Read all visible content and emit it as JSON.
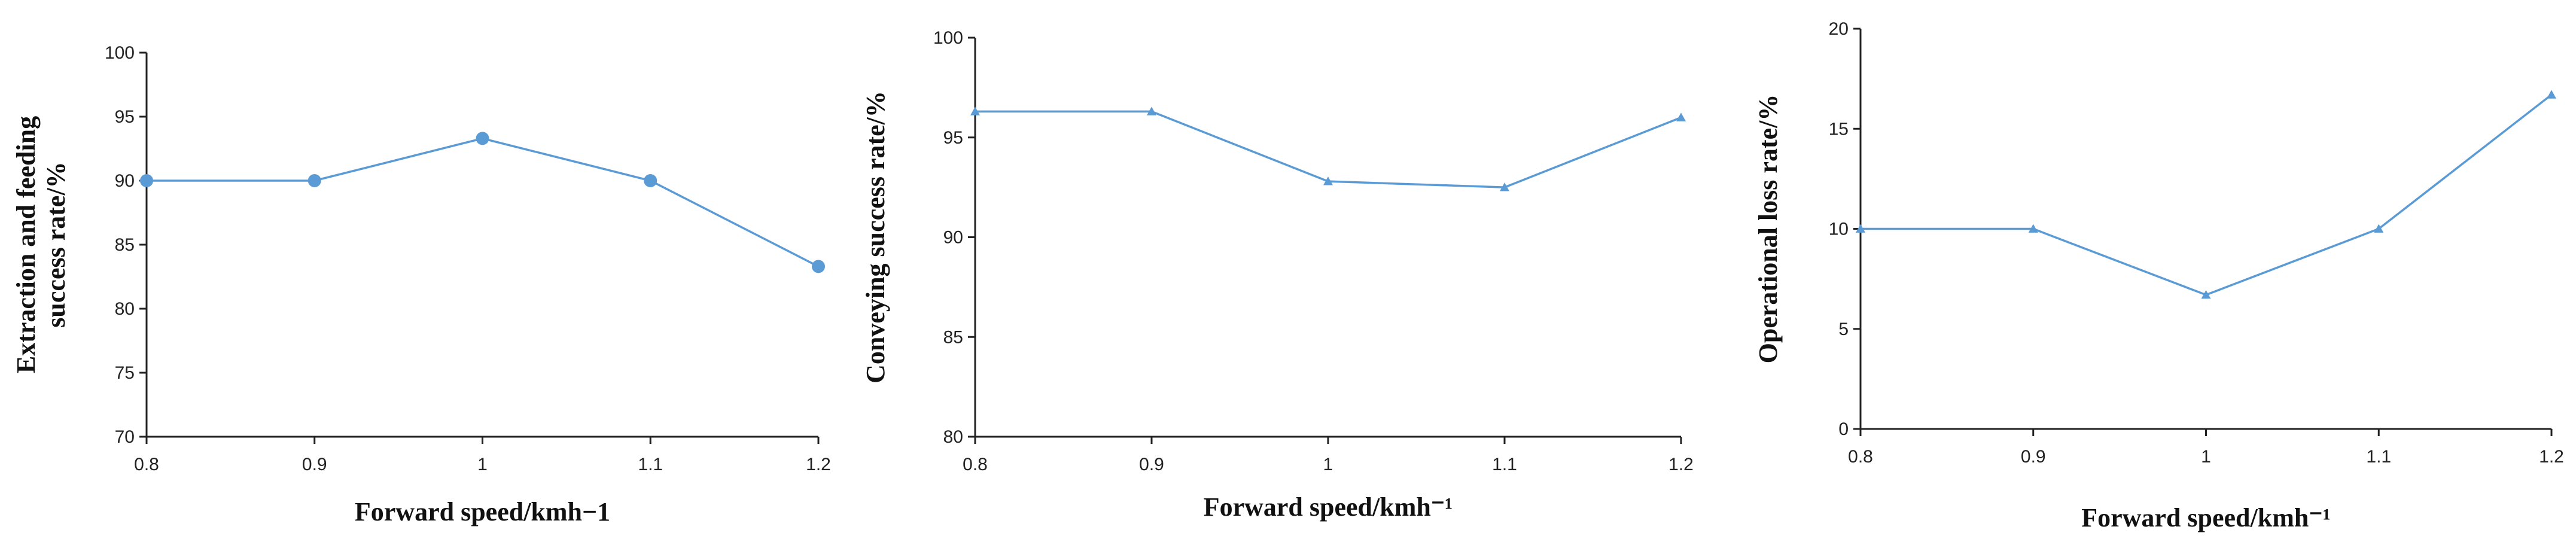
{
  "colors": {
    "series": "#5B9BD5",
    "axis": "#222222"
  },
  "chart_data": [
    {
      "type": "line",
      "x": [
        0.8,
        0.9,
        1,
        1.1,
        1.2
      ],
      "x_tick_labels": [
        "0.8",
        "0.9",
        "1",
        "1.1",
        "1.2"
      ],
      "xlim": [
        0.8,
        1.2
      ],
      "ylim": [
        70,
        100
      ],
      "y_ticks": [
        "70",
        "75",
        "80",
        "85",
        "90",
        "95",
        "100"
      ],
      "xlabel": "Forward speed/kmh−1",
      "ylabel_lines": [
        "Extraction and feeding",
        "success rate/%"
      ],
      "marker": "circle",
      "grid": false,
      "series": [
        {
          "values": [
            90,
            90,
            93.3,
            90,
            83.3
          ]
        }
      ]
    },
    {
      "type": "line",
      "x": [
        0.8,
        0.9,
        1,
        1.1,
        1.2
      ],
      "x_tick_labels": [
        "0.8",
        "0.9",
        "1",
        "1.1",
        "1.2"
      ],
      "xlim": [
        0.8,
        1.2
      ],
      "ylim": [
        80,
        100
      ],
      "y_ticks": [
        "80",
        "85",
        "90",
        "95",
        "100"
      ],
      "xlabel": "Forward speed/kmh⁻¹",
      "ylabel_lines": [
        "Conveying success rate/%"
      ],
      "marker": "triangle",
      "grid": false,
      "series": [
        {
          "values": [
            96.3,
            96.3,
            92.8,
            92.5,
            96
          ]
        }
      ]
    },
    {
      "type": "line",
      "x": [
        0.8,
        0.9,
        1,
        1.1,
        1.2
      ],
      "x_tick_labels": [
        "0.8",
        "0.9",
        "1",
        "1.1",
        "1.2"
      ],
      "xlim": [
        0.8,
        1.2
      ],
      "ylim": [
        0,
        20
      ],
      "y_ticks": [
        "0",
        "5",
        "10",
        "15",
        "20"
      ],
      "xlabel": "Forward speed/kmh⁻¹",
      "ylabel_lines": [
        "Operational loss rate/%"
      ],
      "marker": "triangle",
      "grid": false,
      "series": [
        {
          "values": [
            10,
            10,
            6.7,
            10,
            16.7
          ]
        }
      ]
    }
  ]
}
